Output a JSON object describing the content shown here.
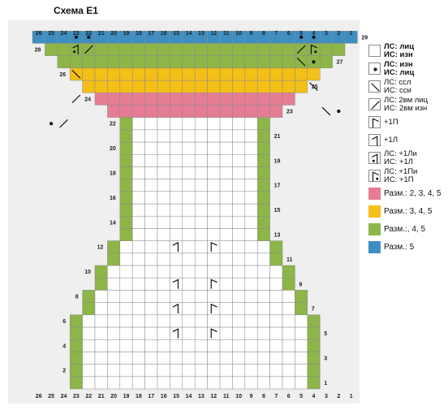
{
  "title": "Схема Е1",
  "grid": {
    "columns": 26,
    "rows": 29,
    "column_numbers": [
      "26",
      "25",
      "24",
      "23",
      "22",
      "21",
      "20",
      "19",
      "18",
      "17",
      "16",
      "15",
      "14",
      "13",
      "12",
      "11",
      "10",
      "9",
      "8",
      "7",
      "6",
      "5",
      "4",
      "3",
      "2",
      "1"
    ],
    "left_row_numbers": [
      "2",
      "4",
      "6",
      "8",
      "10",
      "12",
      "14",
      "16",
      "18",
      "20",
      "22",
      "24",
      "26",
      "28"
    ],
    "right_row_numbers": [
      "1",
      "3",
      "5",
      "7",
      "9",
      "11",
      "13",
      "15",
      "17",
      "19",
      "21",
      "23",
      "25",
      "27",
      "29"
    ],
    "row_extent_stitch_numbers": [
      [
        4,
        23
      ],
      [
        4,
        23
      ],
      [
        4,
        23
      ],
      [
        4,
        23
      ],
      [
        4,
        23
      ],
      [
        4,
        23
      ],
      [
        5,
        22
      ],
      [
        5,
        22
      ],
      [
        6,
        21
      ],
      [
        6,
        21
      ],
      [
        7,
        20
      ],
      [
        7,
        20
      ],
      [
        8,
        19
      ],
      [
        8,
        19
      ],
      [
        8,
        19
      ],
      [
        8,
        19
      ],
      [
        8,
        19
      ],
      [
        8,
        19
      ],
      [
        8,
        19
      ],
      [
        8,
        19
      ],
      [
        8,
        19
      ],
      [
        8,
        19
      ],
      [
        7,
        20
      ],
      [
        6,
        21
      ],
      [
        5,
        22
      ],
      [
        4,
        23
      ],
      [
        3,
        24
      ],
      [
        2,
        25
      ],
      [
        1,
        26
      ]
    ],
    "colored_rows": {
      "row_23": "pink",
      "row_24": "pink",
      "row_25": "yellow",
      "row_26": "yellow",
      "row_27": "green",
      "row_28": "green",
      "row_29": "blue"
    },
    "symbols": [
      {
        "row": 23,
        "stitch": 2,
        "symbol": "dot"
      },
      {
        "row": 23,
        "stitch": 3,
        "symbol": "ssl"
      },
      {
        "row": 22,
        "stitch": 25,
        "symbol": "dot"
      },
      {
        "row": 22,
        "stitch": 24,
        "symbol": "2vm"
      },
      {
        "row": 25,
        "stitch": 4,
        "symbol": "ssl"
      },
      {
        "row": 24,
        "stitch": 23,
        "symbol": "2vm"
      },
      {
        "row": 27,
        "stitch": 4,
        "symbol": "dot"
      },
      {
        "row": 27,
        "stitch": 5,
        "symbol": "ssl"
      },
      {
        "row": 26,
        "stitch": 23,
        "symbol": "ssl"
      },
      {
        "row": 28,
        "stitch": 4,
        "symbol": "plus1p_purl"
      },
      {
        "row": 28,
        "stitch": 5,
        "symbol": "2vm"
      },
      {
        "row": 28,
        "stitch": 22,
        "symbol": "2vm"
      },
      {
        "row": 28,
        "stitch": 23,
        "symbol": "plus1l_purl"
      },
      {
        "row": 29,
        "stitch": 4,
        "symbol": "dot"
      },
      {
        "row": 29,
        "stitch": 5,
        "symbol": "dot"
      },
      {
        "row": 29,
        "stitch": 22,
        "symbol": "dot"
      },
      {
        "row": 29,
        "stitch": 23,
        "symbol": "dot"
      },
      {
        "row": 12,
        "stitch": 15,
        "symbol": "plus1l"
      },
      {
        "row": 12,
        "stitch": 12,
        "symbol": "plus1p"
      },
      {
        "row": 9,
        "stitch": 15,
        "symbol": "plus1l"
      },
      {
        "row": 9,
        "stitch": 12,
        "symbol": "plus1p"
      },
      {
        "row": 7,
        "stitch": 15,
        "symbol": "plus1l"
      },
      {
        "row": 7,
        "stitch": 12,
        "symbol": "plus1p"
      },
      {
        "row": 5,
        "stitch": 15,
        "symbol": "plus1l"
      },
      {
        "row": 5,
        "stitch": 12,
        "symbol": "plus1p"
      }
    ]
  },
  "colors": {
    "pink": "#e57c94",
    "yellow": "#f4bf17",
    "green": "#8db548",
    "blue": "#3f8ec2",
    "white": "#ffffff",
    "panel": "#efefef",
    "line": "#8a8a8a"
  },
  "legend": [
    {
      "symbol": "empty",
      "lines": [
        "ЛС: лиц",
        "ИС: изн"
      ],
      "bold": true
    },
    {
      "symbol": "dot",
      "lines": [
        "ЛС: изн",
        "ИС: лиц"
      ],
      "bold": true
    },
    {
      "symbol": "ssl",
      "lines": [
        "ЛС: ссл",
        "ИС: сси"
      ],
      "bold": false
    },
    {
      "symbol": "2vm",
      "lines": [
        "ЛС: 2вм лиц",
        "ИС: 2вм изн"
      ],
      "bold": false
    },
    {
      "symbol": "plus1p",
      "lines": [
        "+1П"
      ],
      "bold": false
    },
    {
      "symbol": "plus1l",
      "lines": [
        "+1Л"
      ],
      "bold": false
    },
    {
      "symbol": "plus1l_purl",
      "lines": [
        "ЛС: +1Ли",
        "ИС: +1Л"
      ],
      "bold": false
    },
    {
      "symbol": "plus1p_purl",
      "lines": [
        "ЛС: +1Пи",
        "ИС: +1П"
      ],
      "bold": false
    },
    {
      "color": "pink",
      "lines": [
        "Разм.: 2, 3, 4, 5"
      ]
    },
    {
      "color": "yellow",
      "lines": [
        "Разм.: 3, 4, 5"
      ]
    },
    {
      "color": "green",
      "lines": [
        "Разм.:, 4, 5"
      ]
    },
    {
      "color": "blue",
      "lines": [
        "Разм.:  5"
      ]
    }
  ]
}
